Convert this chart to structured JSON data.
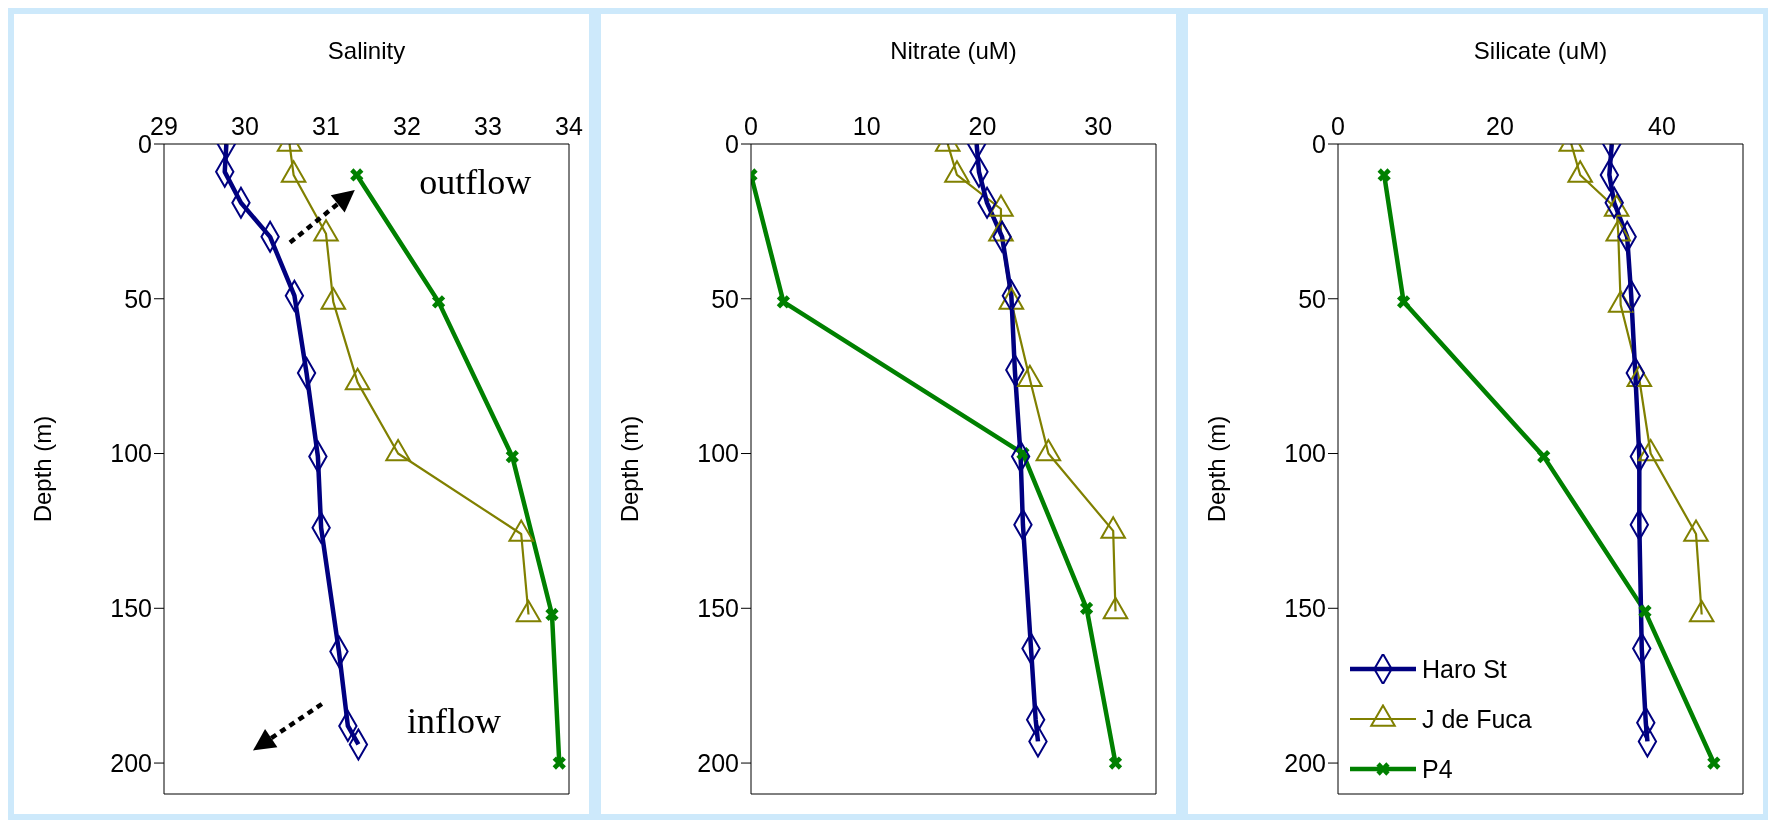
{
  "chart_data": [
    {
      "type": "line",
      "orientation": "horizontal",
      "xlabel": "Salinity",
      "ylabel": "Depth  (m)",
      "xlim": [
        29,
        34
      ],
      "xticks": [
        29,
        30,
        31,
        32,
        33,
        34
      ],
      "ylim": [
        210,
        0
      ],
      "yticks": [
        0,
        50,
        100,
        150,
        200
      ],
      "grid": false,
      "legend": false,
      "line_style": "solid",
      "annotations": [
        "outflow",
        "inflow"
      ],
      "series": [
        {
          "color": "#000080",
          "marker": "diamond",
          "x": [
            0,
            9,
            19,
            30,
            49,
            74,
            101,
            124,
            164,
            188,
            194
          ],
          "values": [
            29.77,
            29.75,
            29.95,
            30.31,
            30.61,
            30.76,
            30.9,
            30.94,
            31.16,
            31.27,
            31.4
          ]
        },
        {
          "color": "#808000",
          "marker": "triangle",
          "x": [
            0,
            10,
            29,
            51,
            77,
            100,
            126,
            152
          ],
          "values": [
            30.55,
            30.6,
            31.0,
            31.09,
            31.39,
            31.89,
            33.41,
            33.5
          ]
        },
        {
          "color": "#008000",
          "marker": "cross",
          "x": [
            10,
            51,
            101,
            152,
            200
          ],
          "values": [
            31.38,
            32.39,
            33.3,
            33.79,
            33.88
          ]
        }
      ]
    },
    {
      "type": "line",
      "orientation": "horizontal",
      "xlabel": "Nitrate  (uM)",
      "ylabel": "Depth  (m)",
      "xlim": [
        0,
        35
      ],
      "xticks": [
        0,
        10,
        20,
        30
      ],
      "ylim": [
        210,
        0
      ],
      "yticks": [
        0,
        50,
        100,
        150,
        200
      ],
      "grid": false,
      "legend": false,
      "line_style": "solid",
      "series": [
        {
          "color": "#000080",
          "marker": "diamond",
          "x": [
            0,
            9,
            19,
            30,
            49,
            73,
            101,
            123,
            163,
            186,
            193
          ],
          "values": [
            19.5,
            19.7,
            20.4,
            21.7,
            22.5,
            22.8,
            23.3,
            23.5,
            24.2,
            24.6,
            24.8
          ]
        },
        {
          "color": "#808000",
          "marker": "triangle",
          "x": [
            0,
            10,
            21,
            29,
            51,
            76,
            100,
            125,
            151
          ],
          "values": [
            17,
            17.8,
            21.6,
            21.6,
            22.5,
            24.1,
            25.7,
            31.3,
            31.5
          ]
        },
        {
          "color": "#008000",
          "marker": "cross",
          "x": [
            10,
            51,
            100,
            150,
            200
          ],
          "values": [
            0,
            2.8,
            23.5,
            29,
            31.5
          ]
        }
      ]
    },
    {
      "type": "line",
      "orientation": "horizontal",
      "xlabel": "Silicate  (uM)",
      "ylabel": "Depth  (m)",
      "xlim": [
        0,
        50
      ],
      "xticks": [
        0,
        20,
        40
      ],
      "ylim": [
        210,
        0
      ],
      "yticks": [
        0,
        50,
        100,
        150,
        200
      ],
      "grid": false,
      "legend": "bottom left",
      "line_style": "solid",
      "series": [
        {
          "name": "Haro St",
          "color": "#000080",
          "marker": "diamond",
          "x": [
            0,
            10,
            19,
            30,
            49,
            74,
            101,
            123,
            163,
            187,
            193
          ],
          "values": [
            33.8,
            33.5,
            34.1,
            35.7,
            36.2,
            36.7,
            37.2,
            37.2,
            37.5,
            38,
            38.2
          ]
        },
        {
          "name": "J de Fuca",
          "color": "#808000",
          "marker": "triangle",
          "x": [
            0,
            10,
            21,
            29,
            52,
            76,
            100,
            126,
            152
          ],
          "values": [
            28.8,
            29.9,
            34.4,
            34.6,
            34.9,
            37.2,
            38.6,
            44.2,
            44.9
          ]
        },
        {
          "name": "P4",
          "color": "#008000",
          "marker": "cross",
          "x": [
            10,
            51,
            101,
            151,
            200
          ],
          "values": [
            5.7,
            8.1,
            25.4,
            37.9,
            46.4
          ]
        }
      ]
    }
  ]
}
